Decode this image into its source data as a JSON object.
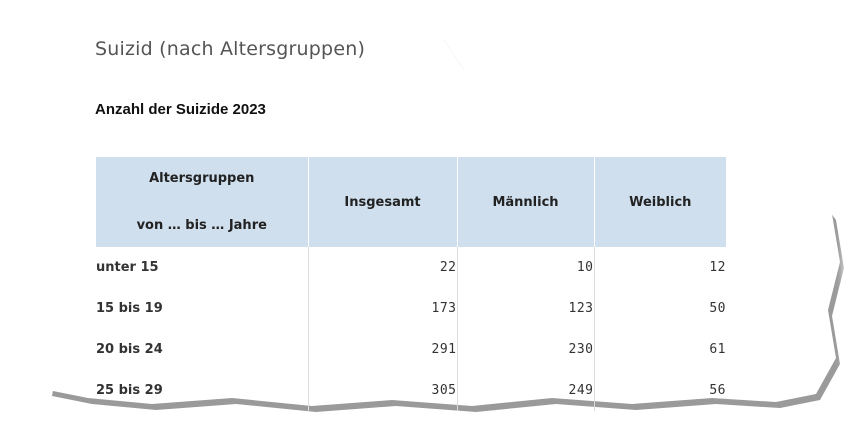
{
  "title": "Suizid (nach Altersgruppen)",
  "subtitle": "Anzahl der Suizide 2023",
  "table": {
    "header": {
      "age_line1": "Altersgruppen",
      "age_line2": "von … bis … Jahre",
      "total": "Insgesamt",
      "male": "Männlich",
      "female": "Weiblich"
    },
    "rows": [
      {
        "age": "unter 15",
        "total": "22",
        "male": "10",
        "female": "12"
      },
      {
        "age": "15 bis 19",
        "total": "173",
        "male": "123",
        "female": "50"
      },
      {
        "age": "20 bis 24",
        "total": "291",
        "male": "230",
        "female": "61"
      },
      {
        "age": "25 bis 29",
        "total": "305",
        "male": "249",
        "female": "56"
      }
    ]
  },
  "colors": {
    "header_bg": "#cfdfee",
    "title": "#555555"
  }
}
